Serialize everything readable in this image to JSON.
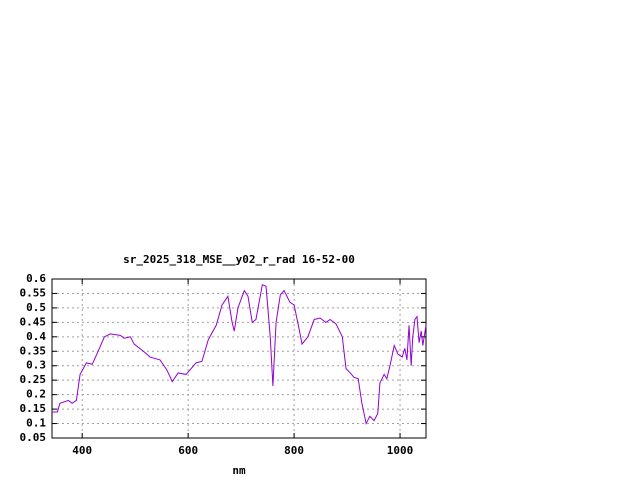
{
  "chart_data": {
    "type": "line",
    "title": "sr_2025_318_MSE__y02_r_rad 16-52-00",
    "x_label": "nm",
    "x": [
      343,
      353,
      358,
      374,
      381,
      389,
      396,
      408,
      419,
      430,
      442,
      453,
      472,
      479,
      491,
      498,
      519,
      528,
      547,
      560,
      570,
      581,
      596,
      615,
      626,
      638,
      653,
      664,
      675,
      683,
      687,
      694,
      706,
      713,
      721,
      728,
      740,
      747,
      755,
      760,
      766,
      774,
      781,
      792,
      800,
      808,
      815,
      826,
      838,
      849,
      860,
      868,
      879,
      891,
      898,
      906,
      913,
      921,
      928,
      936,
      943,
      951,
      958,
      962,
      970,
      975,
      981,
      989,
      996,
      1004,
      1009,
      1013,
      1017,
      1021,
      1024,
      1028,
      1032,
      1036,
      1040,
      1043,
      1049
    ],
    "series": [
      {
        "name": null,
        "color": "#9400d3",
        "values": [
          0.14,
          0.14,
          0.17,
          0.18,
          0.17,
          0.18,
          0.27,
          0.31,
          0.305,
          0.35,
          0.4,
          0.41,
          0.405,
          0.395,
          0.4,
          0.375,
          0.345,
          0.33,
          0.32,
          0.285,
          0.245,
          0.275,
          0.27,
          0.31,
          0.315,
          0.39,
          0.44,
          0.51,
          0.54,
          0.45,
          0.42,
          0.5,
          0.56,
          0.54,
          0.45,
          0.46,
          0.58,
          0.575,
          0.4,
          0.23,
          0.45,
          0.545,
          0.56,
          0.52,
          0.51,
          0.44,
          0.375,
          0.4,
          0.46,
          0.465,
          0.45,
          0.46,
          0.445,
          0.4,
          0.29,
          0.275,
          0.26,
          0.255,
          0.17,
          0.1,
          0.125,
          0.11,
          0.135,
          0.24,
          0.27,
          0.255,
          0.3,
          0.37,
          0.34,
          0.33,
          0.36,
          0.32,
          0.44,
          0.3,
          0.4,
          0.46,
          0.47,
          0.38,
          0.42,
          0.37,
          0.44
        ]
      }
    ],
    "xlim": [
      343,
      1049
    ],
    "xticks": [
      400,
      600,
      800,
      1000
    ],
    "ylim": [
      0.05,
      0.6
    ],
    "yticks": [
      0.05,
      0.1,
      0.15,
      0.2,
      0.25,
      0.3,
      0.35,
      0.4,
      0.45,
      0.5,
      0.55,
      0.6
    ],
    "grid": true
  }
}
